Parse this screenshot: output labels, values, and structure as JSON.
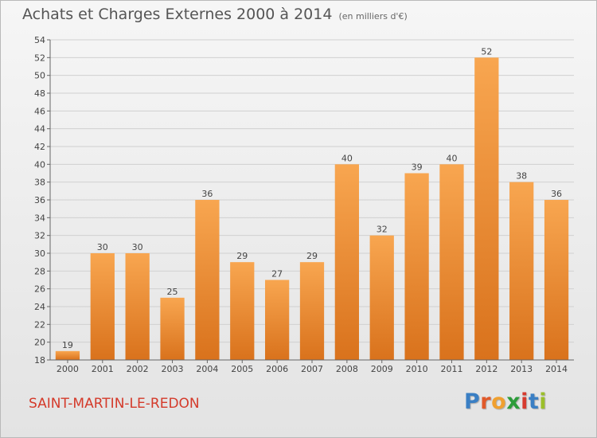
{
  "chart_data": {
    "type": "bar",
    "title": "Achats et Charges Externes 2000 à 2014",
    "subtitle": "(en milliers d'€)",
    "categories": [
      "2000",
      "2001",
      "2002",
      "2003",
      "2004",
      "2005",
      "2006",
      "2007",
      "2008",
      "2009",
      "2010",
      "2011",
      "2012",
      "2013",
      "2014"
    ],
    "values": [
      19,
      30,
      30,
      25,
      36,
      29,
      27,
      29,
      40,
      32,
      39,
      40,
      52,
      38,
      36
    ],
    "ylim": [
      18,
      54
    ],
    "yticks": [
      18,
      20,
      22,
      24,
      26,
      28,
      30,
      32,
      34,
      36,
      38,
      40,
      42,
      44,
      46,
      48,
      50,
      52,
      54
    ],
    "grid": true,
    "bar_color": "#f29a3a"
  },
  "footer": {
    "place_name": "SAINT-MARTIN-LE-REDON",
    "logo_letters": [
      "P",
      "r",
      "o",
      "x",
      "i",
      "t",
      "i"
    ],
    "logo_colors": [
      "#3a7fc4",
      "#e0592a",
      "#f0a030",
      "#2c9c3a",
      "#d63b2f",
      "#3a7fc4",
      "#9bbf2a"
    ]
  }
}
